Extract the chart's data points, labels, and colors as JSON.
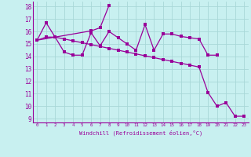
{
  "xlabel": "Windchill (Refroidissement éolien,°C)",
  "bg_color": "#c8f0f0",
  "grid_color": "#a8d8d8",
  "line_color": "#990099",
  "xlim": [
    -0.5,
    23.5
  ],
  "ylim": [
    8.7,
    18.4
  ],
  "xticks": [
    0,
    1,
    2,
    3,
    4,
    5,
    6,
    7,
    8,
    9,
    10,
    11,
    12,
    13,
    14,
    15,
    16,
    17,
    18,
    19,
    20,
    21,
    22,
    23
  ],
  "yticks": [
    9,
    10,
    11,
    12,
    13,
    14,
    15,
    16,
    17,
    18
  ],
  "s1x": [
    0,
    1,
    2,
    3,
    4,
    5,
    6,
    7,
    8,
    9,
    10,
    11,
    12,
    13,
    14,
    15,
    16,
    17,
    18,
    19,
    20
  ],
  "s1y": [
    15.3,
    16.7,
    15.55,
    14.35,
    14.1,
    14.1,
    15.9,
    14.85,
    16.0,
    15.5,
    15.0,
    14.5,
    16.55,
    14.5,
    15.8,
    15.8,
    15.6,
    15.5,
    15.4,
    14.1,
    14.1
  ],
  "s2x": [
    0,
    2,
    6,
    7,
    8
  ],
  "s2y": [
    15.3,
    15.55,
    16.05,
    16.3,
    18.1
  ],
  "s3x": [
    0,
    1,
    2,
    3,
    4,
    5,
    6,
    7,
    8,
    9,
    10,
    11,
    12,
    13,
    14,
    15,
    16,
    17,
    18,
    19,
    20,
    21,
    22,
    23
  ],
  "s3y": [
    15.3,
    15.55,
    15.55,
    15.4,
    15.25,
    15.1,
    14.95,
    14.8,
    14.65,
    14.5,
    14.35,
    14.2,
    14.05,
    13.9,
    13.75,
    13.6,
    13.45,
    13.3,
    13.15,
    11.1,
    10.0,
    10.3,
    9.2,
    9.2
  ]
}
